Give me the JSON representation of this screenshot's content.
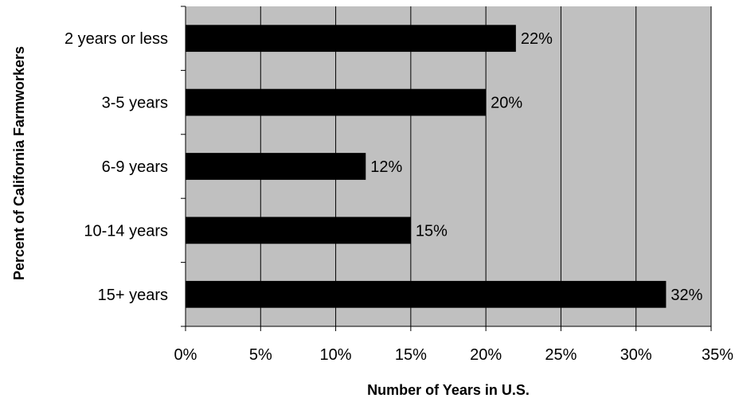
{
  "chart_data": {
    "type": "bar",
    "orientation": "horizontal",
    "categories": [
      "2 years or less",
      "3-5 years",
      "6-9 years",
      "10-14 years",
      "15+ years"
    ],
    "values": [
      22,
      20,
      12,
      15,
      32
    ],
    "data_labels": [
      "22%",
      "20%",
      "12%",
      "15%",
      "32%"
    ],
    "xlabel": "Number of Years in U.S.",
    "ylabel": "Percent of California Farmworkers",
    "xlim": [
      0,
      35
    ],
    "x_ticks": [
      0,
      5,
      10,
      15,
      20,
      25,
      30,
      35
    ],
    "x_tick_labels": [
      "0%",
      "5%",
      "10%",
      "15%",
      "20%",
      "25%",
      "30%",
      "35%"
    ],
    "grid": true,
    "legend": "none",
    "colors": {
      "plot_background": "#c0c0c0",
      "bar": "#000000",
      "gridline": "#000000"
    }
  }
}
